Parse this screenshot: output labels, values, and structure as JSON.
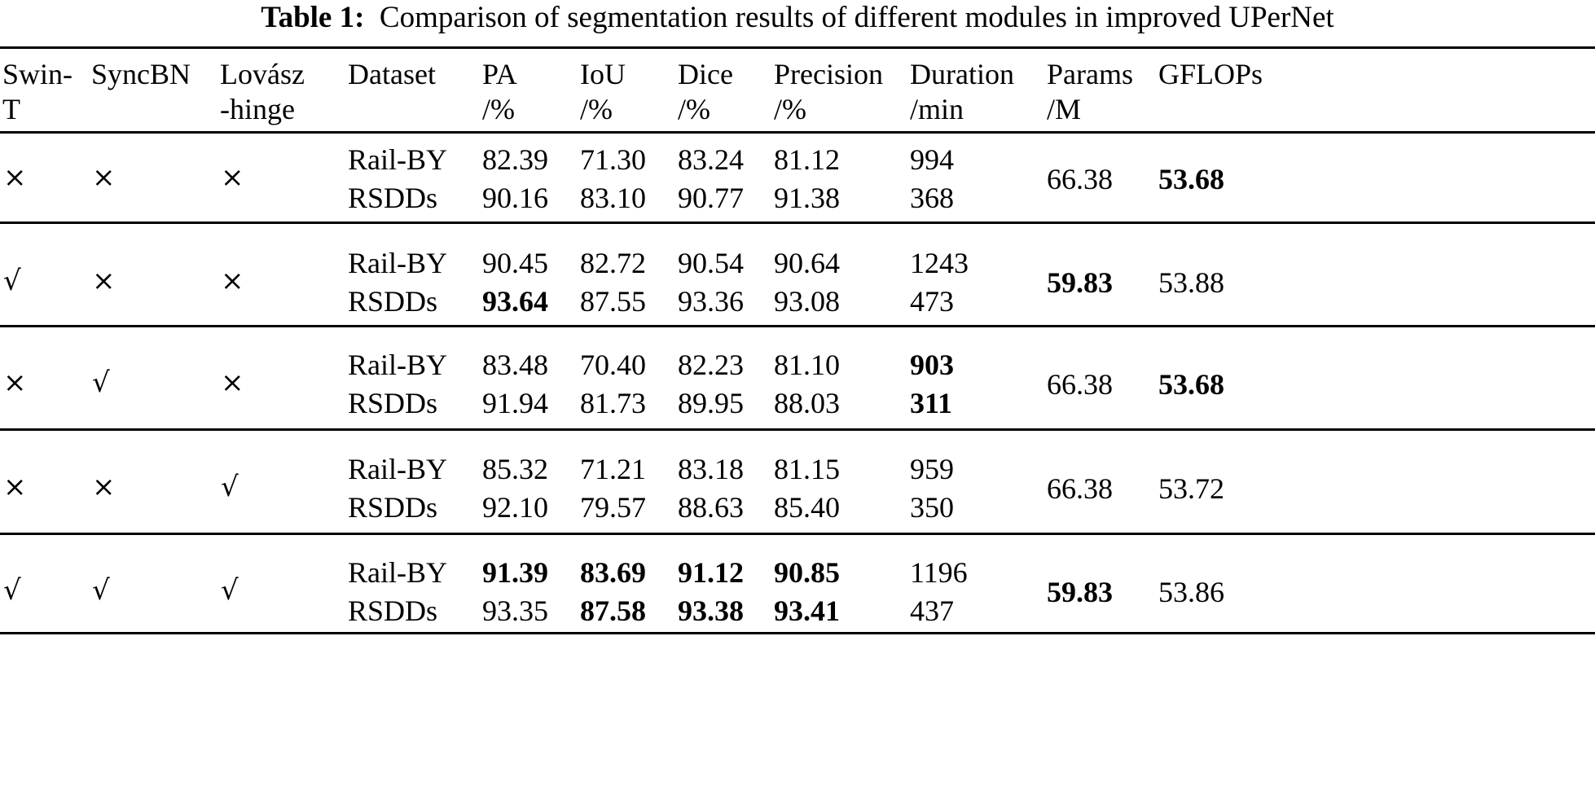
{
  "caption": {
    "label": "Table 1:",
    "text": "Comparison of segmentation results of different modules in improved UPerNet"
  },
  "headers": [
    {
      "line1": "Swin-",
      "line2": "T"
    },
    {
      "line1": "SyncBN",
      "line2": ""
    },
    {
      "line1": "Lovász",
      "line2": "-hinge"
    },
    {
      "line1": "Dataset",
      "line2": ""
    },
    {
      "line1": "PA",
      "line2": "/%"
    },
    {
      "line1": "IoU",
      "line2": "/%"
    },
    {
      "line1": "Dice",
      "line2": "/%"
    },
    {
      "line1": "Precision",
      "line2": "/%"
    },
    {
      "line1": "Duration",
      "line2": "/min"
    },
    {
      "line1": "Params",
      "line2": "/M"
    },
    {
      "line1": "GFLOPs",
      "line2": ""
    }
  ],
  "symbols": {
    "yes": "√",
    "no": "×"
  },
  "groups": [
    {
      "swin_t": "×",
      "syncbn": "×",
      "lovasz": "×",
      "params": "66.38",
      "params_bold": false,
      "gflops": "53.68",
      "gflops_bold": true,
      "rows": [
        {
          "dataset": "Rail-BY",
          "pa": "82.39",
          "iou": "71.30",
          "dice": "83.24",
          "precision": "81.12",
          "duration": "994",
          "bold": []
        },
        {
          "dataset": "RSDDs",
          "pa": "90.16",
          "iou": "83.10",
          "dice": "90.77",
          "precision": "91.38",
          "duration": "368",
          "bold": []
        }
      ]
    },
    {
      "swin_t": "√",
      "syncbn": "×",
      "lovasz": "×",
      "params": "59.83",
      "params_bold": true,
      "gflops": "53.88",
      "gflops_bold": false,
      "rows": [
        {
          "dataset": "Rail-BY",
          "pa": "90.45",
          "iou": "82.72",
          "dice": "90.54",
          "precision": "90.64",
          "duration": "1243",
          "bold": []
        },
        {
          "dataset": "RSDDs",
          "pa": "93.64",
          "iou": "87.55",
          "dice": "93.36",
          "precision": "93.08",
          "duration": "473",
          "bold": [
            "pa"
          ]
        }
      ]
    },
    {
      "swin_t": "×",
      "syncbn": "√",
      "lovasz": "×",
      "params": "66.38",
      "params_bold": false,
      "gflops": "53.68",
      "gflops_bold": true,
      "rows": [
        {
          "dataset": "Rail-BY",
          "pa": "83.48",
          "iou": "70.40",
          "dice": "82.23",
          "precision": "81.10",
          "duration": "903",
          "bold": [
            "duration"
          ]
        },
        {
          "dataset": "RSDDs",
          "pa": "91.94",
          "iou": "81.73",
          "dice": "89.95",
          "precision": "88.03",
          "duration": "311",
          "bold": [
            "duration"
          ]
        }
      ]
    },
    {
      "swin_t": "×",
      "syncbn": "×",
      "lovasz": "√",
      "params": "66.38",
      "params_bold": false,
      "gflops": "53.72",
      "gflops_bold": false,
      "rows": [
        {
          "dataset": "Rail-BY",
          "pa": "85.32",
          "iou": "71.21",
          "dice": "83.18",
          "precision": "81.15",
          "duration": "959",
          "bold": []
        },
        {
          "dataset": "RSDDs",
          "pa": "92.10",
          "iou": "79.57",
          "dice": "88.63",
          "precision": "85.40",
          "duration": "350",
          "bold": []
        }
      ]
    },
    {
      "swin_t": "√",
      "syncbn": "√",
      "lovasz": "√",
      "params": "59.83",
      "params_bold": true,
      "gflops": "53.86",
      "gflops_bold": false,
      "rows": [
        {
          "dataset": "Rail-BY",
          "pa": "91.39",
          "iou": "83.69",
          "dice": "91.12",
          "precision": "90.85",
          "duration": "1196",
          "bold": [
            "pa",
            "iou",
            "dice",
            "precision"
          ]
        },
        {
          "dataset": "RSDDs",
          "pa": "93.35",
          "iou": "87.58",
          "dice": "93.38",
          "precision": "93.41",
          "duration": "437",
          "bold": [
            "iou",
            "dice",
            "precision"
          ]
        }
      ]
    }
  ]
}
